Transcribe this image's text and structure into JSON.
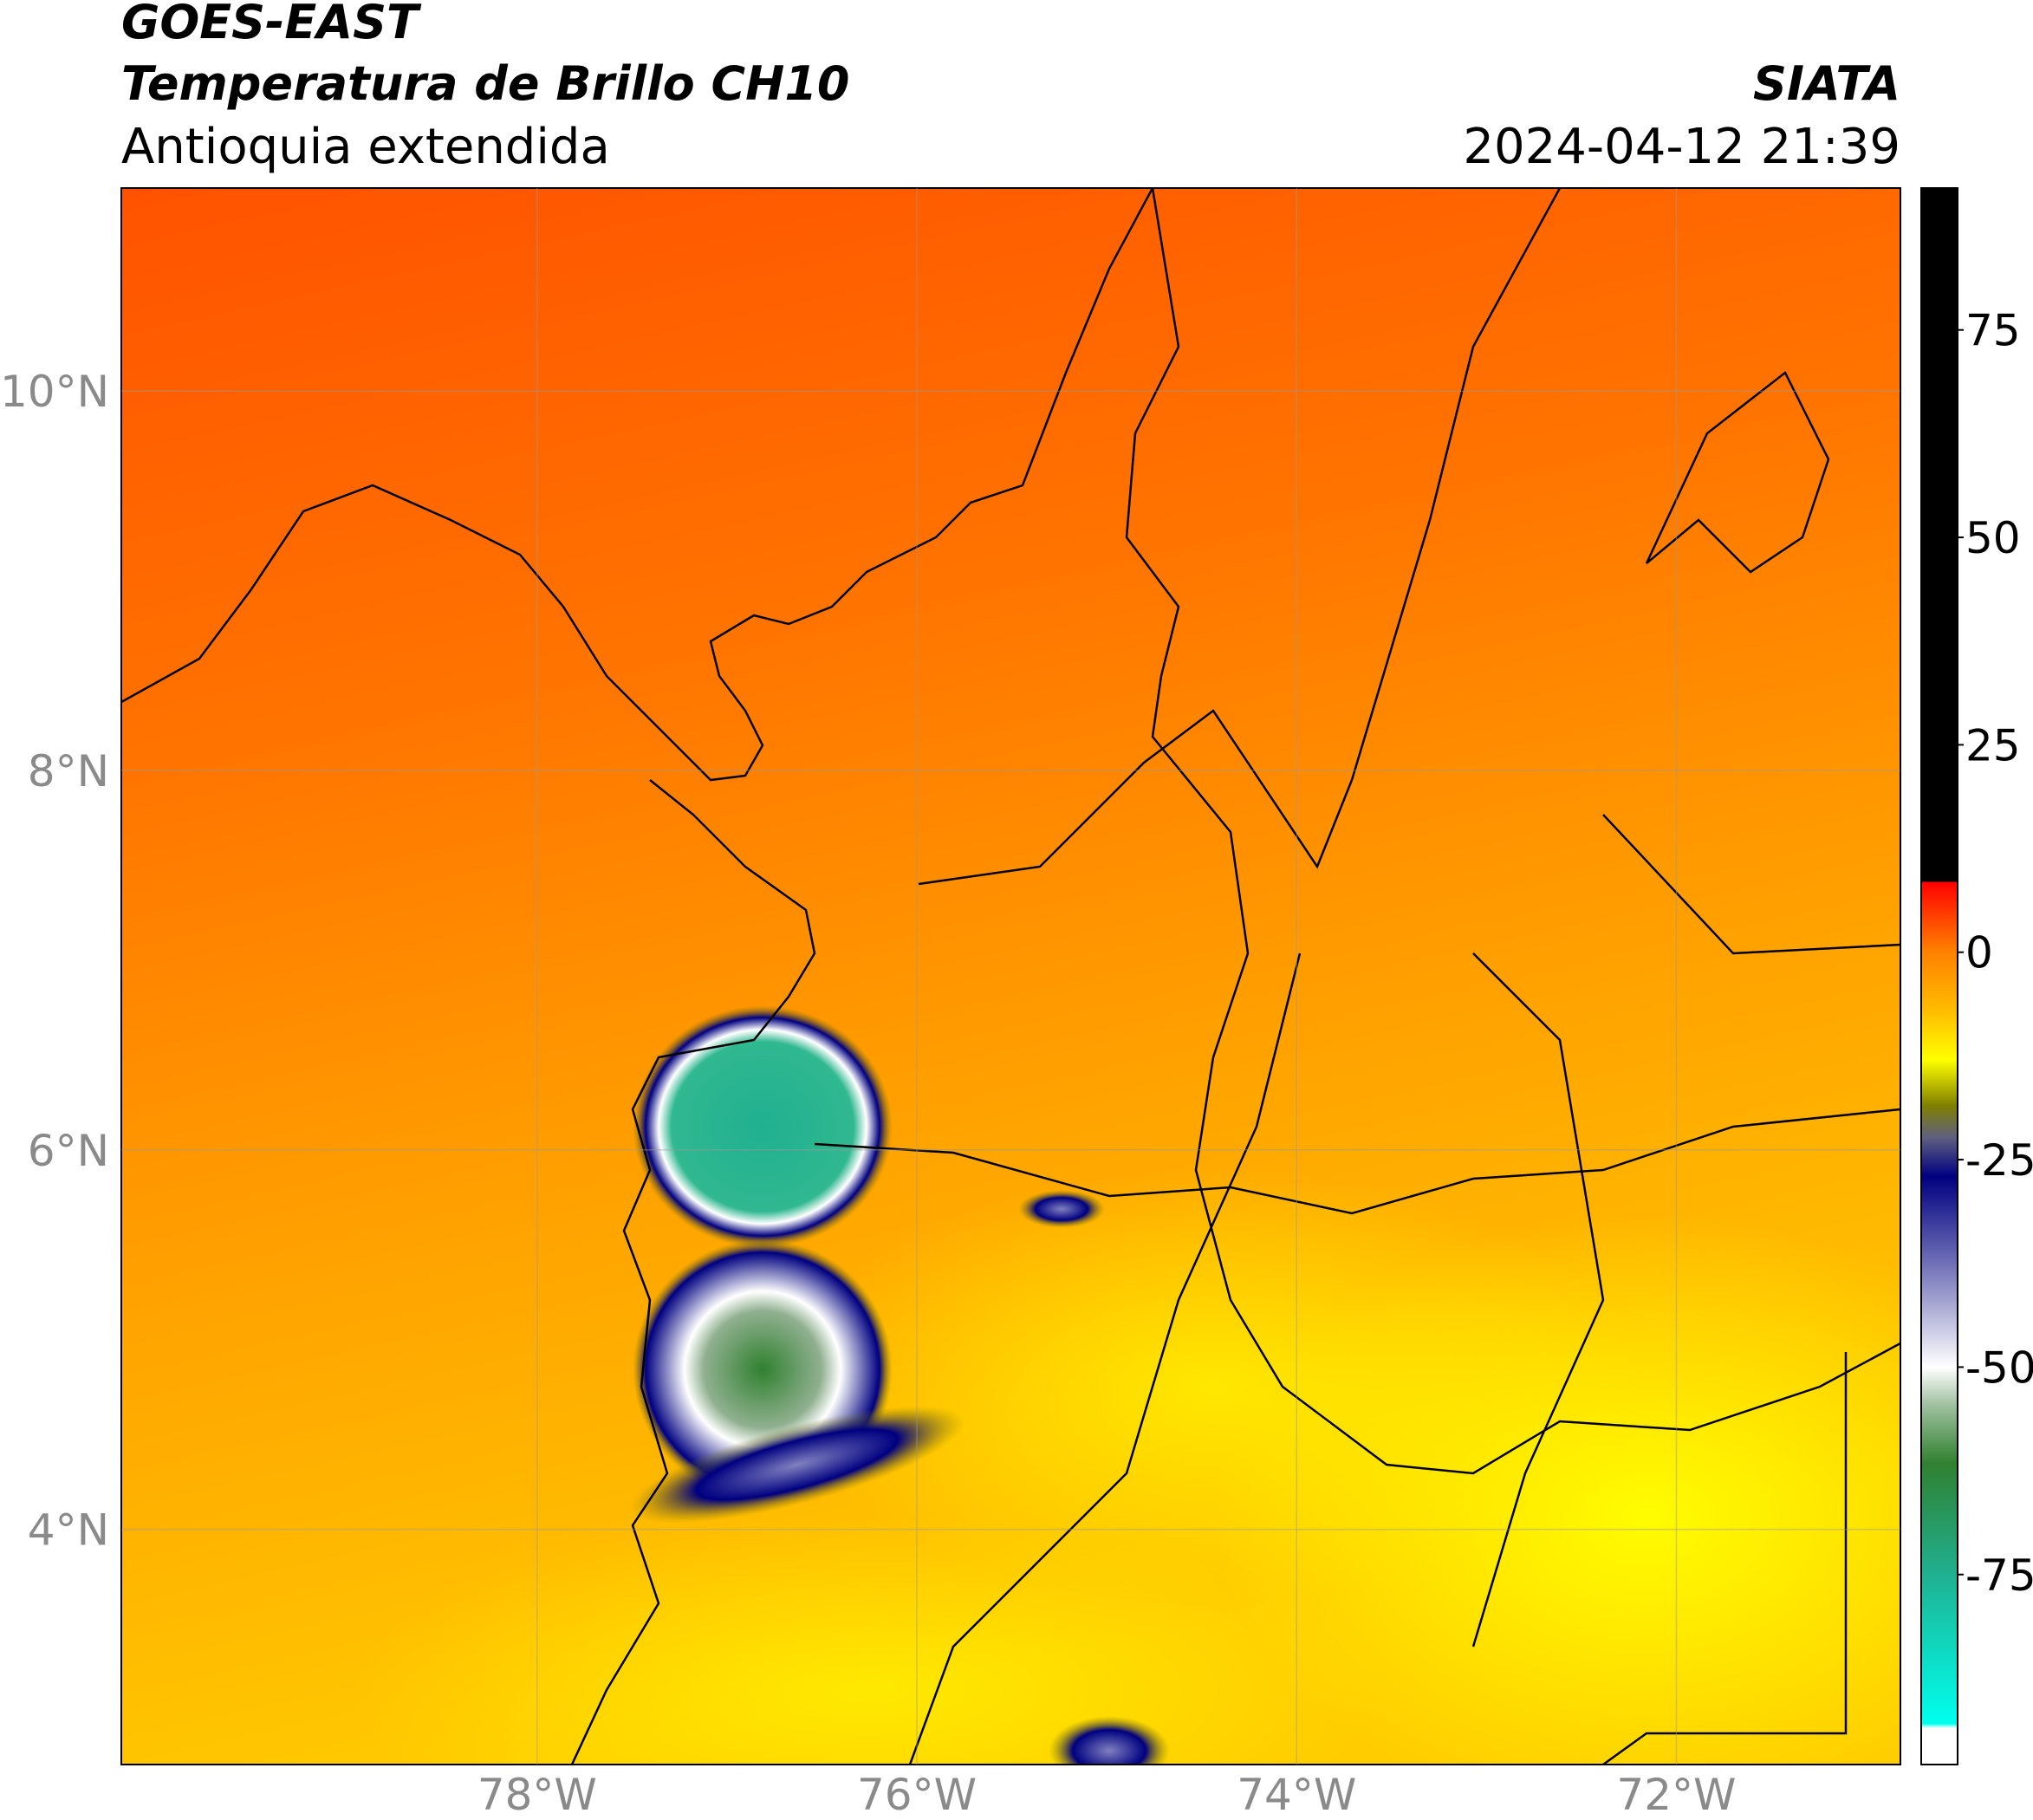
{
  "header": {
    "title": "GOES-EAST",
    "subtitle": "Temperatura de Brillo CH10",
    "region": "Antioquia extendida",
    "source": "SIATA",
    "datetime": "2024-04-12 21:39"
  },
  "map": {
    "lat_range": [
      2.76,
      11.07
    ],
    "lon_range": [
      -80.19,
      -70.82
    ],
    "lat_ticks": [
      {
        "value": 10,
        "label": "10°N"
      },
      {
        "value": 8,
        "label": "8°N"
      },
      {
        "value": 6,
        "label": "6°N"
      },
      {
        "value": 4,
        "label": "4°N"
      }
    ],
    "lon_ticks": [
      {
        "value": -78,
        "label": "78°W"
      },
      {
        "value": -76,
        "label": "76°W"
      },
      {
        "value": -74,
        "label": "74°W"
      },
      {
        "value": -72,
        "label": "72°W"
      }
    ]
  },
  "colorbar": {
    "range": [
      -97.9,
      92.1
    ],
    "ticks": [
      75,
      50,
      25,
      0,
      -25,
      -50,
      -75
    ]
  }
}
